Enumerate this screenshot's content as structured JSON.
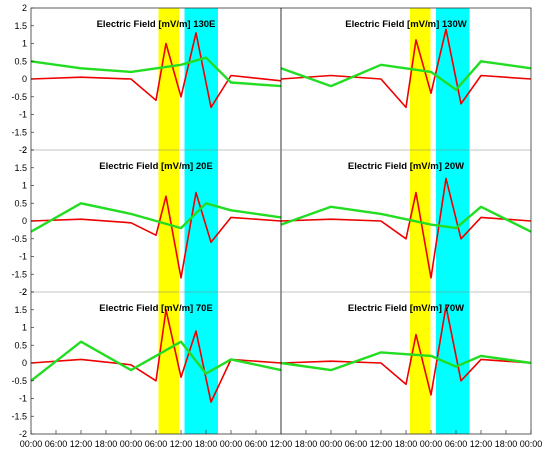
{
  "chart_data": {
    "type": "line",
    "grid": false,
    "shaded_bands": [
      {
        "color": "#FFFF00",
        "x_range": [
          0.255,
          0.296
        ]
      },
      {
        "color": "#00FFFF",
        "x_range": [
          0.307,
          0.374
        ]
      },
      {
        "color": "#FFFF00",
        "x_range": [
          0.758,
          0.799
        ]
      },
      {
        "color": "#00FFFF",
        "x_range": [
          0.81,
          0.877
        ]
      }
    ],
    "ylim": [
      -2,
      2
    ],
    "yticks": [
      "2",
      "1.5",
      "1",
      "0.5",
      "0",
      "-0.5",
      "-1",
      "-1.5",
      "-2"
    ],
    "xticks": [
      "00:00",
      "06:00",
      "12:00",
      "18:00",
      "00:00",
      "06:00",
      "12:00",
      "18:00",
      "00:00",
      "06:00",
      "12:00",
      "18:00",
      "00:00",
      "06:00",
      "12:00",
      "18:00",
      "00:00",
      "06:00",
      "12:00",
      "18:00",
      "00:00"
    ],
    "colors": {
      "red": "#EE0000",
      "green": "#22DD22",
      "yellow": "#FFFF00",
      "cyan": "#00FFFF"
    },
    "panels": [
      {
        "title": "Electric Field [mV/m] 130E",
        "series": [
          {
            "color": "red",
            "x": [
              0.0,
              0.1,
              0.2,
              0.25,
              0.27,
              0.3,
              0.33,
              0.36,
              0.4,
              0.5
            ],
            "y": [
              0.0,
              0.05,
              0.0,
              -0.6,
              1.0,
              -0.5,
              1.3,
              -0.8,
              0.1,
              -0.05
            ]
          },
          {
            "color": "green",
            "x": [
              0.0,
              0.1,
              0.2,
              0.3,
              0.35,
              0.4,
              0.5
            ],
            "y": [
              0.5,
              0.3,
              0.2,
              0.4,
              0.6,
              -0.1,
              -0.2
            ]
          }
        ]
      },
      {
        "title": "Electric Field [mV/m] 130W",
        "series": [
          {
            "color": "red",
            "x": [
              0.0,
              0.1,
              0.2,
              0.25,
              0.27,
              0.3,
              0.33,
              0.36,
              0.4,
              0.5
            ],
            "y": [
              0.0,
              0.1,
              0.0,
              -0.8,
              1.1,
              -0.4,
              1.4,
              -0.7,
              0.1,
              0.0
            ]
          },
          {
            "color": "green",
            "x": [
              0.0,
              0.1,
              0.2,
              0.3,
              0.35,
              0.4,
              0.5
            ],
            "y": [
              0.3,
              -0.2,
              0.4,
              0.2,
              -0.3,
              0.5,
              0.3
            ]
          }
        ]
      },
      {
        "title": "Electric Field [mV/m] 20E",
        "series": [
          {
            "color": "red",
            "x": [
              0.0,
              0.1,
              0.2,
              0.25,
              0.27,
              0.3,
              0.33,
              0.36,
              0.4,
              0.5
            ],
            "y": [
              0.0,
              0.05,
              -0.05,
              -0.4,
              0.7,
              -1.6,
              0.8,
              -0.6,
              0.1,
              0.0
            ]
          },
          {
            "color": "green",
            "x": [
              0.0,
              0.1,
              0.2,
              0.3,
              0.35,
              0.4,
              0.5
            ],
            "y": [
              -0.3,
              0.5,
              0.2,
              -0.2,
              0.5,
              0.3,
              0.1
            ]
          }
        ]
      },
      {
        "title": "Electric Field [mV/m] 20W",
        "series": [
          {
            "color": "red",
            "x": [
              0.0,
              0.1,
              0.2,
              0.25,
              0.27,
              0.3,
              0.33,
              0.36,
              0.4,
              0.5
            ],
            "y": [
              0.0,
              0.05,
              0.0,
              -0.5,
              0.8,
              -1.6,
              1.2,
              -0.5,
              0.1,
              0.0
            ]
          },
          {
            "color": "green",
            "x": [
              0.0,
              0.1,
              0.2,
              0.3,
              0.35,
              0.4,
              0.5
            ],
            "y": [
              -0.1,
              0.4,
              0.2,
              -0.1,
              -0.2,
              0.4,
              -0.3
            ]
          }
        ]
      },
      {
        "title": "Electric Field [mV/m] 70E",
        "series": [
          {
            "color": "red",
            "x": [
              0.0,
              0.1,
              0.2,
              0.25,
              0.27,
              0.3,
              0.33,
              0.36,
              0.4,
              0.5
            ],
            "y": [
              0.0,
              0.1,
              -0.05,
              -0.5,
              1.5,
              -0.4,
              0.9,
              -1.1,
              0.1,
              0.0
            ]
          },
          {
            "color": "green",
            "x": [
              0.0,
              0.1,
              0.2,
              0.3,
              0.35,
              0.4,
              0.5
            ],
            "y": [
              -0.5,
              0.6,
              -0.2,
              0.6,
              -0.3,
              0.1,
              -0.2
            ]
          }
        ]
      },
      {
        "title": "Electric Field [mV/m] 70W",
        "series": [
          {
            "color": "red",
            "x": [
              0.0,
              0.1,
              0.2,
              0.25,
              0.27,
              0.3,
              0.33,
              0.36,
              0.4,
              0.5
            ],
            "y": [
              0.0,
              0.05,
              0.0,
              -0.6,
              0.8,
              -0.9,
              1.6,
              -0.5,
              0.1,
              0.0
            ]
          },
          {
            "color": "green",
            "x": [
              0.0,
              0.1,
              0.2,
              0.3,
              0.35,
              0.4,
              0.5
            ],
            "y": [
              0.0,
              -0.2,
              0.3,
              0.2,
              -0.1,
              0.2,
              0.0
            ]
          }
        ]
      }
    ]
  }
}
